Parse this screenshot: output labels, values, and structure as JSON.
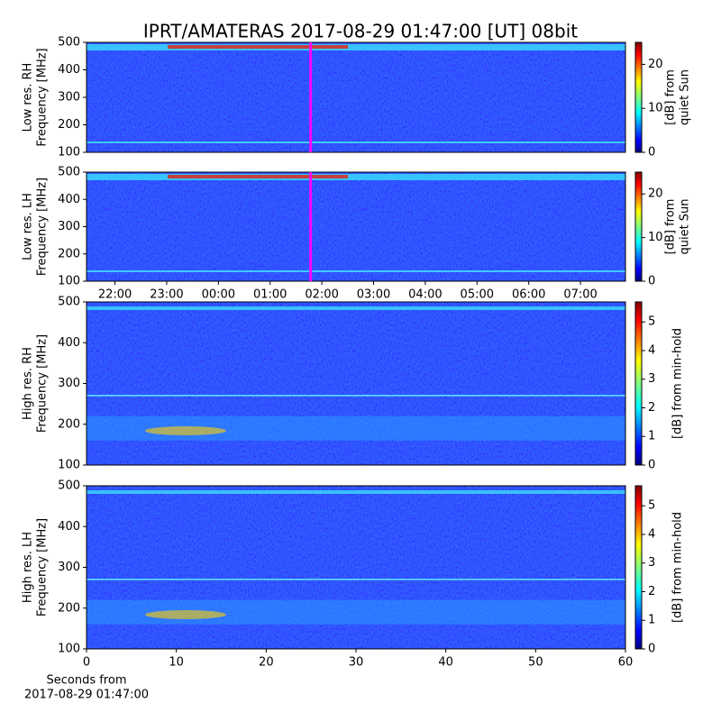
{
  "title": "IPRT/AMATERAS 2017-08-29 01:47:00 [UT]   08bit",
  "chart_data": [
    {
      "type": "spectrogram",
      "ylabel": [
        "Low res. RH",
        "Frequency [MHz]"
      ],
      "colorbar_label": [
        "[dB] from",
        "quiet Sun"
      ],
      "ylim": [
        100,
        500
      ],
      "yticks": [
        100,
        200,
        300,
        400,
        500
      ],
      "xlim": [
        21.45,
        31.87
      ],
      "clim": [
        0,
        25
      ],
      "cticks": [
        0,
        10,
        20
      ],
      "marker_x": 25.783,
      "marker_color": "#ff00ff"
    },
    {
      "type": "spectrogram",
      "ylabel": [
        "Low res. LH",
        "Frequency [MHz]"
      ],
      "colorbar_label": [
        "[dB] from",
        "quiet Sun"
      ],
      "ylim": [
        100,
        500
      ],
      "yticks": [
        100,
        200,
        300,
        400,
        500
      ],
      "xlim": [
        21.45,
        31.87
      ],
      "xticks": [
        {
          "value": 22,
          "label": "22:00"
        },
        {
          "value": 23,
          "label": "23:00"
        },
        {
          "value": 24,
          "label": "00:00"
        },
        {
          "value": 25,
          "label": "01:00"
        },
        {
          "value": 26,
          "label": "02:00"
        },
        {
          "value": 27,
          "label": "03:00"
        },
        {
          "value": 28,
          "label": "04:00"
        },
        {
          "value": 29,
          "label": "05:00"
        },
        {
          "value": 30,
          "label": "06:00"
        },
        {
          "value": 31,
          "label": "07:00"
        }
      ],
      "clim": [
        0,
        25
      ],
      "cticks": [
        0,
        10,
        20
      ],
      "marker_x": 25.783,
      "marker_color": "#ff00ff"
    },
    {
      "type": "spectrogram",
      "ylabel": [
        "High res. RH",
        "Frequency [MHz]"
      ],
      "colorbar_label": [
        "[dB] from min-hold"
      ],
      "ylim": [
        100,
        500
      ],
      "yticks": [
        100,
        200,
        300,
        400,
        500
      ],
      "xlim": [
        0,
        60
      ],
      "clim": [
        0,
        5.7
      ],
      "cticks": [
        0,
        1,
        2,
        3,
        4,
        5
      ]
    },
    {
      "type": "spectrogram",
      "ylabel": [
        "High res. LH",
        "Frequency [MHz]"
      ],
      "colorbar_label": [
        "[dB] from min-hold"
      ],
      "ylim": [
        100,
        500
      ],
      "yticks": [
        100,
        200,
        300,
        400,
        500
      ],
      "xlim": [
        0,
        60
      ],
      "xticks": [
        0,
        10,
        20,
        30,
        40,
        50,
        60
      ],
      "xlabel": [
        "Seconds from",
        "2017-08-29 01:47:00"
      ],
      "clim": [
        0,
        5.7
      ],
      "cticks": [
        0,
        1,
        2,
        3,
        4,
        5
      ]
    }
  ]
}
